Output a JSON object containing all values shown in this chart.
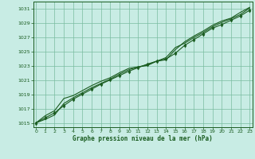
{
  "xlabel": "Graphe pression niveau de la mer (hPa)",
  "ylim": [
    1014.5,
    1032.0
  ],
  "xlim": [
    -0.3,
    23.3
  ],
  "yticks": [
    1015,
    1017,
    1019,
    1021,
    1023,
    1025,
    1027,
    1029,
    1031
  ],
  "xticks": [
    0,
    1,
    2,
    3,
    4,
    5,
    6,
    7,
    8,
    9,
    10,
    11,
    12,
    13,
    14,
    15,
    16,
    17,
    18,
    19,
    20,
    21,
    22,
    23
  ],
  "background_color": "#c8ece4",
  "grid_color": "#7abca0",
  "line_color": "#1a5c20",
  "line1_y": [
    1015.1,
    1016.1,
    1016.8,
    1018.5,
    1018.9,
    1019.6,
    1020.3,
    1020.9,
    1021.4,
    1022.1,
    1022.7,
    1022.9,
    1023.1,
    1023.7,
    1023.9,
    1025.3,
    1026.4,
    1027.2,
    1027.9,
    1028.7,
    1029.3,
    1029.7,
    1030.5,
    1031.2
  ],
  "line2_y": [
    1015.1,
    1015.8,
    1016.5,
    1017.5,
    1018.4,
    1019.1,
    1019.8,
    1020.5,
    1021.1,
    1021.7,
    1022.3,
    1022.8,
    1023.3,
    1023.7,
    1024.0,
    1024.8,
    1025.9,
    1026.7,
    1027.5,
    1028.3,
    1028.8,
    1029.4,
    1030.0,
    1030.8
  ],
  "line3_y": [
    1015.1,
    1015.6,
    1016.2,
    1017.8,
    1018.6,
    1019.3,
    1020.0,
    1020.6,
    1021.2,
    1021.9,
    1022.5,
    1022.9,
    1023.2,
    1023.7,
    1024.2,
    1025.6,
    1026.2,
    1027.0,
    1027.7,
    1028.5,
    1029.1,
    1029.6,
    1030.2,
    1031.1
  ],
  "marker_y": [
    1015.1,
    1015.8,
    1016.5,
    1017.5,
    1018.4,
    1019.1,
    1019.8,
    1020.5,
    1021.1,
    1021.7,
    1022.3,
    1022.8,
    1023.3,
    1023.7,
    1024.0,
    1024.8,
    1025.9,
    1026.7,
    1027.5,
    1028.3,
    1028.8,
    1029.4,
    1030.0,
    1030.8
  ]
}
